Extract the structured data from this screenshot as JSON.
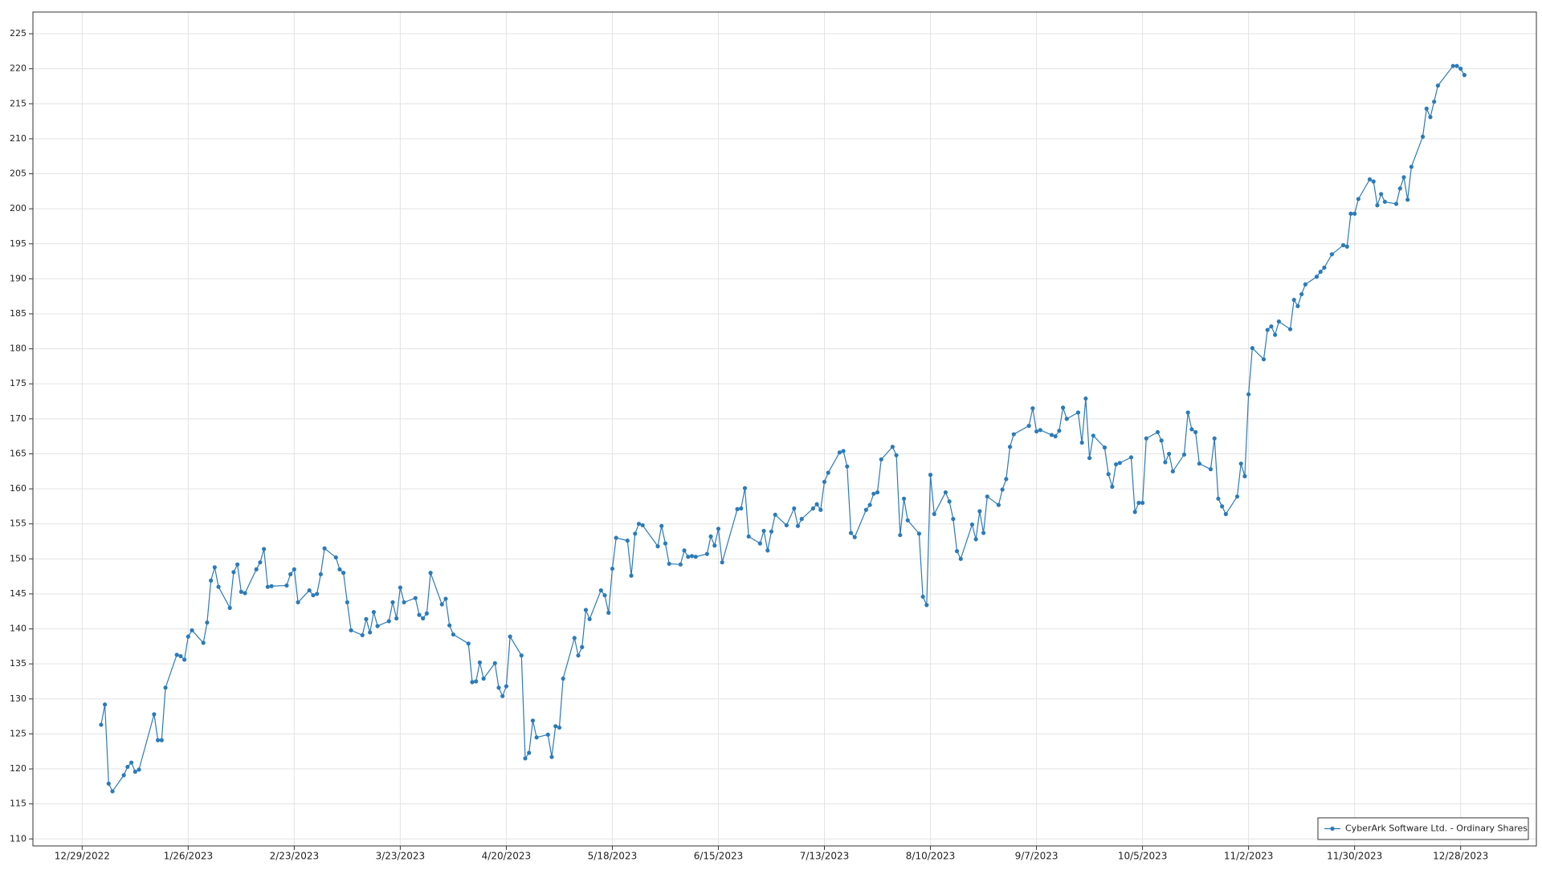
{
  "chart_data": {
    "type": "line",
    "x": [
      "1/3/2023",
      "1/4/2023",
      "1/5/2023",
      "1/6/2023",
      "1/9/2023",
      "1/10/2023",
      "1/11/2023",
      "1/12/2023",
      "1/13/2023",
      "1/17/2023",
      "1/18/2023",
      "1/19/2023",
      "1/20/2023",
      "1/23/2023",
      "1/24/2023",
      "1/25/2023",
      "1/26/2023",
      "1/27/2023",
      "1/30/2023",
      "1/31/2023",
      "2/1/2023",
      "2/2/2023",
      "2/3/2023",
      "2/6/2023",
      "2/7/2023",
      "2/8/2023",
      "2/9/2023",
      "2/10/2023",
      "2/13/2023",
      "2/14/2023",
      "2/15/2023",
      "2/16/2023",
      "2/17/2023",
      "2/21/2023",
      "2/22/2023",
      "2/23/2023",
      "2/24/2023",
      "2/27/2023",
      "2/28/2023",
      "3/1/2023",
      "3/2/2023",
      "3/3/2023",
      "3/6/2023",
      "3/7/2023",
      "3/8/2023",
      "3/9/2023",
      "3/10/2023",
      "3/13/2023",
      "3/14/2023",
      "3/15/2023",
      "3/16/2023",
      "3/17/2023",
      "3/20/2023",
      "3/21/2023",
      "3/22/2023",
      "3/23/2023",
      "3/24/2023",
      "3/27/2023",
      "3/28/2023",
      "3/29/2023",
      "3/30/2023",
      "3/31/2023",
      "4/3/2023",
      "4/4/2023",
      "4/5/2023",
      "4/6/2023",
      "4/10/2023",
      "4/11/2023",
      "4/12/2023",
      "4/13/2023",
      "4/14/2023",
      "4/17/2023",
      "4/18/2023",
      "4/19/2023",
      "4/20/2023",
      "4/21/2023",
      "4/24/2023",
      "4/25/2023",
      "4/26/2023",
      "4/27/2023",
      "4/28/2023",
      "5/1/2023",
      "5/2/2023",
      "5/3/2023",
      "5/4/2023",
      "5/5/2023",
      "5/8/2023",
      "5/9/2023",
      "5/10/2023",
      "5/11/2023",
      "5/12/2023",
      "5/15/2023",
      "5/16/2023",
      "5/17/2023",
      "5/18/2023",
      "5/19/2023",
      "5/22/2023",
      "5/23/2023",
      "5/24/2023",
      "5/25/2023",
      "5/26/2023",
      "5/30/2023",
      "5/31/2023",
      "6/1/2023",
      "6/2/2023",
      "6/5/2023",
      "6/6/2023",
      "6/7/2023",
      "6/8/2023",
      "6/9/2023",
      "6/12/2023",
      "6/13/2023",
      "6/14/2023",
      "6/15/2023",
      "6/16/2023",
      "6/20/2023",
      "6/21/2023",
      "6/22/2023",
      "6/23/2023",
      "6/26/2023",
      "6/27/2023",
      "6/28/2023",
      "6/29/2023",
      "6/30/2023",
      "7/3/2023",
      "7/5/2023",
      "7/6/2023",
      "7/7/2023",
      "7/10/2023",
      "7/11/2023",
      "7/12/2023",
      "7/13/2023",
      "7/14/2023",
      "7/17/2023",
      "7/18/2023",
      "7/19/2023",
      "7/20/2023",
      "7/21/2023",
      "7/24/2023",
      "7/25/2023",
      "7/26/2023",
      "7/27/2023",
      "7/28/2023",
      "7/31/2023",
      "8/1/2023",
      "8/2/2023",
      "8/3/2023",
      "8/4/2023",
      "8/7/2023",
      "8/8/2023",
      "8/9/2023",
      "8/10/2023",
      "8/11/2023",
      "8/14/2023",
      "8/15/2023",
      "8/16/2023",
      "8/17/2023",
      "8/18/2023",
      "8/21/2023",
      "8/22/2023",
      "8/23/2023",
      "8/24/2023",
      "8/25/2023",
      "8/28/2023",
      "8/29/2023",
      "8/30/2023",
      "8/31/2023",
      "9/1/2023",
      "9/5/2023",
      "9/6/2023",
      "9/7/2023",
      "9/8/2023",
      "9/11/2023",
      "9/12/2023",
      "9/13/2023",
      "9/14/2023",
      "9/15/2023",
      "9/18/2023",
      "9/19/2023",
      "9/20/2023",
      "9/21/2023",
      "9/22/2023",
      "9/25/2023",
      "9/26/2023",
      "9/27/2023",
      "9/28/2023",
      "9/29/2023",
      "10/2/2023",
      "10/3/2023",
      "10/4/2023",
      "10/5/2023",
      "10/6/2023",
      "10/9/2023",
      "10/10/2023",
      "10/11/2023",
      "10/12/2023",
      "10/13/2023",
      "10/16/2023",
      "10/17/2023",
      "10/18/2023",
      "10/19/2023",
      "10/20/2023",
      "10/23/2023",
      "10/24/2023",
      "10/25/2023",
      "10/26/2023",
      "10/27/2023",
      "10/30/2023",
      "10/31/2023",
      "11/1/2023",
      "11/2/2023",
      "11/3/2023",
      "11/6/2023",
      "11/7/2023",
      "11/8/2023",
      "11/9/2023",
      "11/10/2023",
      "11/13/2023",
      "11/14/2023",
      "11/15/2023",
      "11/16/2023",
      "11/17/2023",
      "11/20/2023",
      "11/21/2023",
      "11/22/2023",
      "11/24/2023",
      "11/27/2023",
      "11/28/2023",
      "11/29/2023",
      "11/30/2023",
      "12/1/2023",
      "12/4/2023",
      "12/5/2023",
      "12/6/2023",
      "12/7/2023",
      "12/8/2023",
      "12/11/2023",
      "12/12/2023",
      "12/13/2023",
      "12/14/2023",
      "12/15/2023",
      "12/18/2023",
      "12/19/2023",
      "12/20/2023",
      "12/21/2023",
      "12/22/2023",
      "12/26/2023",
      "12/27/2023",
      "12/28/2023",
      "12/29/2023"
    ],
    "series": [
      {
        "name": "CyberArk Software Ltd. - Ordinary Shares",
        "color": "#2b7bb9",
        "values": [
          126.3,
          129.2,
          117.9,
          116.8,
          119.1,
          120.3,
          120.9,
          119.6,
          119.9,
          127.8,
          124.1,
          124.1,
          131.6,
          136.3,
          136.1,
          135.6,
          138.9,
          139.8,
          138.0,
          140.9,
          146.9,
          148.8,
          146.0,
          143.0,
          148.1,
          149.2,
          145.3,
          145.1,
          148.5,
          149.5,
          151.4,
          146.0,
          146.1,
          146.2,
          147.8,
          148.5,
          143.8,
          145.5,
          144.8,
          145.0,
          147.8,
          151.5,
          150.2,
          148.5,
          148.0,
          143.8,
          139.8,
          139.1,
          141.4,
          139.5,
          142.4,
          140.4,
          141.1,
          143.8,
          141.5,
          145.9,
          143.8,
          144.4,
          142.0,
          141.5,
          142.2,
          148.0,
          143.5,
          144.3,
          140.5,
          139.2,
          137.9,
          132.4,
          132.5,
          135.2,
          132.9,
          135.1,
          131.6,
          130.4,
          131.8,
          138.9,
          136.2,
          121.5,
          122.3,
          126.9,
          124.5,
          124.9,
          121.7,
          126.1,
          125.9,
          132.9,
          138.7,
          136.2,
          137.4,
          142.7,
          141.4,
          145.5,
          144.8,
          142.3,
          148.6,
          153.0,
          152.6,
          147.6,
          153.6,
          155.0,
          154.8,
          151.8,
          154.7,
          152.2,
          149.3,
          149.2,
          151.2,
          150.3,
          150.4,
          150.3,
          150.7,
          153.2,
          151.9,
          154.3,
          149.5,
          157.1,
          157.2,
          160.1,
          153.2,
          152.2,
          154.0,
          151.2,
          153.9,
          156.3,
          154.8,
          157.2,
          154.7,
          155.7,
          157.2,
          157.8,
          157.0,
          161.0,
          162.3,
          165.2,
          165.4,
          163.2,
          153.7,
          153.1,
          157.0,
          157.7,
          159.3,
          159.5,
          164.2,
          166.0,
          164.8,
          153.4,
          158.6,
          155.5,
          153.6,
          144.6,
          143.4,
          162.0,
          156.4,
          159.5,
          158.2,
          155.7,
          151.1,
          150.0,
          154.9,
          152.8,
          156.8,
          153.7,
          158.9,
          157.7,
          159.9,
          161.4,
          166.0,
          167.8,
          169.0,
          171.5,
          168.2,
          168.4,
          167.7,
          167.5,
          168.3,
          171.6,
          170.0,
          170.9,
          166.6,
          172.9,
          164.4,
          167.6,
          165.9,
          162.1,
          160.3,
          163.5,
          163.7,
          164.5,
          156.7,
          158.0,
          158.0,
          167.2,
          168.1,
          166.9,
          163.8,
          165.0,
          162.5,
          164.9,
          170.9,
          168.5,
          168.1,
          163.6,
          162.8,
          167.2,
          158.6,
          157.5,
          156.4,
          158.9,
          163.6,
          161.8,
          173.5,
          180.1,
          178.5,
          182.7,
          183.2,
          182.0,
          183.9,
          182.8,
          187.0,
          186.1,
          187.8,
          189.2,
          190.3,
          191.0,
          191.6,
          193.5,
          194.8,
          194.6,
          199.3,
          199.3,
          201.4,
          204.2,
          203.9,
          200.5,
          202.1,
          201.0,
          200.7,
          202.9,
          204.5,
          201.3,
          206.0,
          210.3,
          214.3,
          213.1,
          215.3,
          217.6,
          220.4,
          220.4,
          220.0,
          219.1
        ]
      }
    ],
    "xlim": [
      "12/16/2022",
      "1/17/2024"
    ],
    "xticks": [
      "12/29/2022",
      "1/26/2023",
      "2/23/2023",
      "3/23/2023",
      "4/20/2023",
      "5/18/2023",
      "6/15/2023",
      "7/13/2023",
      "8/10/2023",
      "9/7/2023",
      "10/5/2023",
      "11/2/2023",
      "11/30/2023",
      "12/28/2023"
    ],
    "ylim": [
      109,
      228.1
    ],
    "yticks": [
      110,
      115,
      120,
      125,
      130,
      135,
      140,
      145,
      150,
      155,
      160,
      165,
      170,
      175,
      180,
      185,
      190,
      195,
      200,
      205,
      210,
      215,
      220,
      225
    ],
    "grid": true,
    "markers": true,
    "legend": "lower right"
  }
}
